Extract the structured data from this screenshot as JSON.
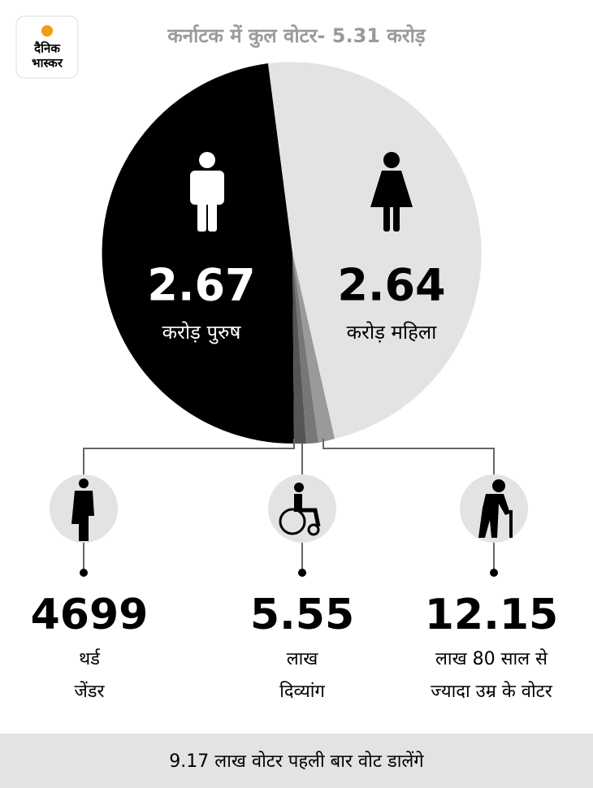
{
  "header": {
    "logo": [
      "दैनिक",
      "भास्कर"
    ],
    "title": "कर्नाटक में कुल वोटर- 5.31 करोड़"
  },
  "pie": {
    "men": {
      "value": "2.67",
      "label": "करोड़ पुरुष"
    },
    "women": {
      "value": "2.64",
      "label": "करोड़ महिला"
    }
  },
  "groups": [
    {
      "value": "4699",
      "label": [
        "थर्ड",
        "जेंडर"
      ]
    },
    {
      "value": "5.55",
      "label": [
        "लाख",
        "दिव्यांग"
      ]
    },
    {
      "value": "12.15",
      "label": [
        "लाख 80 साल से",
        "ज्यादा उम्र के वोटर"
      ]
    }
  ],
  "footer": "9.17 लाख वोटर पहली बार वोट डालेंगे"
}
